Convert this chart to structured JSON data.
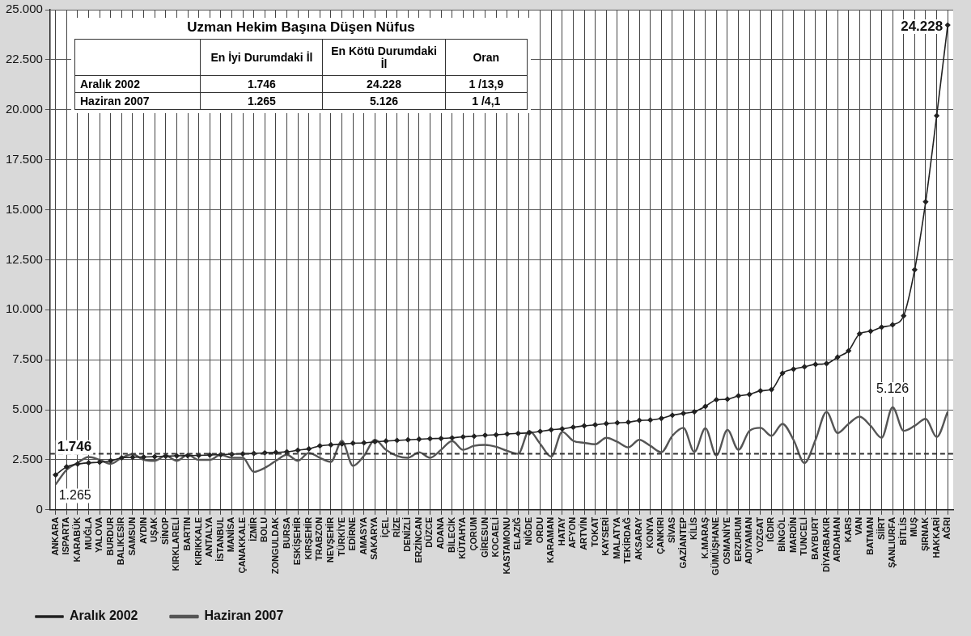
{
  "chart_data": {
    "type": "line",
    "title": "Uzman Hekim Başına Düşen Nüfus",
    "categories": [
      "ANKARA",
      "ISPARTA",
      "KARABÜK",
      "MUĞLA",
      "YALOVA",
      "BURDUR",
      "BALIKESİR",
      "SAMSUN",
      "AYDIN",
      "UŞAK",
      "SİNOP",
      "KIRKLARELİ",
      "BARTIN",
      "KIRIKKALE",
      "ANTALYA",
      "İSTANBUL",
      "MANİSA",
      "ÇANAKKALE",
      "İZMİR",
      "BOLU",
      "ZONGULDAK",
      "BURSA",
      "ESKİŞEHİR",
      "KIRŞEHİR",
      "TRABZON",
      "NEVŞEHİR",
      "TÜRKİYE",
      "EDİRNE",
      "AMASYA",
      "SAKARYA",
      "İÇEL",
      "RİZE",
      "DENİZLİ",
      "ERZİNCAN",
      "DÜZCE",
      "ADANA",
      "BİLECİK",
      "KÜTAHYA",
      "ÇORUM",
      "GİRESUN",
      "KOCAELİ",
      "KASTAMONU",
      "ELAZIĞ",
      "NİĞDE",
      "ORDU",
      "KARAMAN",
      "HATAY",
      "AFYON",
      "ARTVİN",
      "TOKAT",
      "KAYSERİ",
      "MALATYA",
      "TEKİRDAĞ",
      "AKSARAY",
      "KONYA",
      "ÇANKIRI",
      "SİVAS",
      "GAZİANTEP",
      "KİLİS",
      "K.MARAŞ",
      "GÜMÜŞHANE",
      "OSMANİYE",
      "ERZURUM",
      "ADIYAMAN",
      "YOZGAT",
      "IĞDIR",
      "BİNGÖL",
      "MARDİN",
      "TUNCELİ",
      "BAYBURT",
      "DİYARBAKIR",
      "ARDAHAN",
      "KARS",
      "VAN",
      "BATMAN",
      "SİİRT",
      "ŞANLIURFA",
      "BİTLİS",
      "MUŞ",
      "ŞIRNAK",
      "HAKKARİ",
      "AĞRI"
    ],
    "series": [
      {
        "name": "Aralık 2002",
        "color": "#222222",
        "marker": "diamond",
        "values": [
          1746,
          2150,
          2290,
          2350,
          2380,
          2450,
          2600,
          2630,
          2640,
          2660,
          2680,
          2700,
          2710,
          2720,
          2740,
          2760,
          2780,
          2800,
          2820,
          2850,
          2870,
          2900,
          2980,
          3050,
          3200,
          3250,
          3290,
          3330,
          3350,
          3400,
          3440,
          3470,
          3500,
          3530,
          3560,
          3570,
          3600,
          3650,
          3680,
          3730,
          3750,
          3790,
          3820,
          3850,
          3920,
          4000,
          4050,
          4130,
          4200,
          4250,
          4310,
          4350,
          4380,
          4470,
          4490,
          4570,
          4730,
          4820,
          4900,
          5170,
          5500,
          5530,
          5700,
          5770,
          5950,
          6010,
          6830,
          7030,
          7150,
          7270,
          7310,
          7630,
          7950,
          8800,
          8930,
          9130,
          9250,
          9700,
          12000,
          15400,
          19700,
          24228
        ],
        "value_labels": [
          "1.746",
          null,
          null,
          null,
          null,
          null,
          null,
          null,
          null,
          null,
          null,
          null,
          null,
          null,
          null,
          null,
          null,
          null,
          null,
          null,
          null,
          null,
          null,
          null,
          null,
          null,
          null,
          null,
          null,
          null,
          null,
          null,
          null,
          null,
          null,
          null,
          null,
          null,
          null,
          null,
          null,
          null,
          null,
          null,
          null,
          null,
          null,
          null,
          null,
          null,
          null,
          null,
          null,
          null,
          null,
          null,
          null,
          null,
          null,
          null,
          null,
          null,
          null,
          null,
          null,
          null,
          null,
          null,
          null,
          null,
          null,
          null,
          null,
          null,
          null,
          null,
          null,
          null,
          null,
          null,
          null,
          "24.228"
        ]
      },
      {
        "name": "Haziran 2007",
        "color": "#555555",
        "marker": "none",
        "values": [
          1265,
          2000,
          2350,
          2640,
          2500,
          2300,
          2600,
          2780,
          2500,
          2450,
          2710,
          2450,
          2750,
          2500,
          2500,
          2750,
          2600,
          2600,
          1900,
          2100,
          2450,
          2750,
          2450,
          2850,
          2600,
          2400,
          3450,
          2200,
          2700,
          3500,
          3000,
          2700,
          2600,
          2880,
          2600,
          3000,
          3440,
          3000,
          3200,
          3250,
          3150,
          2950,
          2800,
          3950,
          3300,
          2660,
          3900,
          3450,
          3350,
          3280,
          3600,
          3400,
          3120,
          3500,
          3200,
          2880,
          3700,
          4100,
          2900,
          4080,
          2720,
          4000,
          3000,
          3950,
          4100,
          3700,
          4300,
          3500,
          2340,
          3500,
          4900,
          3840,
          4300,
          4660,
          4200,
          3600,
          5126,
          3950,
          4200,
          4550,
          3640,
          4900
        ],
        "value_labels": [
          "1.265",
          null,
          null,
          null,
          null,
          null,
          null,
          null,
          null,
          null,
          null,
          null,
          null,
          null,
          null,
          null,
          null,
          null,
          null,
          null,
          null,
          null,
          null,
          null,
          null,
          null,
          null,
          null,
          null,
          null,
          null,
          null,
          null,
          null,
          null,
          null,
          null,
          null,
          null,
          null,
          null,
          null,
          null,
          null,
          null,
          null,
          null,
          null,
          null,
          null,
          null,
          null,
          null,
          null,
          null,
          null,
          null,
          null,
          null,
          null,
          null,
          null,
          null,
          null,
          null,
          null,
          null,
          null,
          null,
          null,
          null,
          null,
          null,
          null,
          null,
          null,
          "5.126",
          null,
          null,
          null,
          null,
          null
        ]
      }
    ],
    "ylim": [
      0,
      25000
    ],
    "yticks": [
      0,
      {
        "value": 2500,
        "label": "2.500"
      },
      {
        "value": 5000,
        "label": "5.000"
      },
      {
        "value": 7500,
        "label": "7.500"
      },
      {
        "value": 10000,
        "label": "10.000"
      },
      {
        "value": 12500,
        "label": "12.500"
      },
      {
        "value": 15000,
        "label": "15.000"
      },
      {
        "value": 17500,
        "label": "17.500"
      },
      {
        "value": 20000,
        "label": "20.000"
      },
      {
        "value": 22500,
        "label": "22.500"
      },
      {
        "value": 25000,
        "label": "25.000"
      }
    ],
    "ref_lines": [
      {
        "axis": "y",
        "value": 2800,
        "color": "#333333",
        "line_style": "dashed"
      }
    ],
    "annotations": [
      "En İyi Durumdaki İl",
      "En Kötü Durumdaki İl",
      "Oran",
      "Aralık 2002",
      "1.746",
      "24.228",
      "1 /13,9",
      "Haziran 2007",
      "1.265",
      "5.126",
      "1 /4,1"
    ],
    "grid": true,
    "legend": "bottom"
  }
}
